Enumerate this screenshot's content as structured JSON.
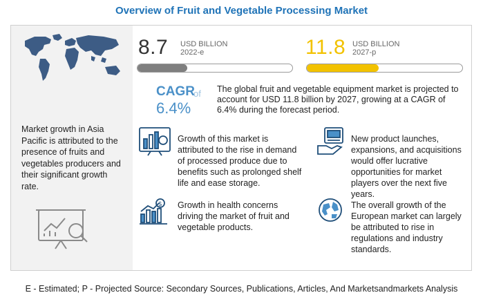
{
  "title": "Overview of Fruit and Vegetable Processing Market",
  "left_panel": {
    "text": "Market growth in Asia Pacific is attributed to the presence of fruits and vegetables producers and their significant growth rate.",
    "map_icon": "world-map-icon",
    "report_icon": "analytics-report-icon"
  },
  "stats": {
    "v2022": {
      "value": "8.7",
      "unit": "USD BILLION",
      "year": "2022-e",
      "bar_fill_fraction": 0.32,
      "color": "#7f7f7f"
    },
    "v2027": {
      "value": "11.8",
      "unit": "USD BILLION",
      "year": "2027-p",
      "bar_fill_fraction": 0.46,
      "color": "#f2c200"
    }
  },
  "cagr": {
    "label": "CAGR",
    "of": "of",
    "value": "6.4%",
    "description": "The global fruit and vegetable equipment market is projected to account for USD 11.8 billion by 2027, growing at a CAGR of 6.4% during the forecast period."
  },
  "points": [
    {
      "icon": "growth-chart-icon",
      "text": "Growth of this market is attributed to the rise in demand of processed produce due to benefits such as prolonged shelf life and ease storage."
    },
    {
      "icon": "product-launch-icon",
      "text": "New product launches, expansions, and acquisitions would offer lucrative opportunities for market players over the next five years."
    },
    {
      "icon": "dollar-growth-icon",
      "text": "Growth in health concerns driving the market of fruit and vegetable products."
    },
    {
      "icon": "globe-icon",
      "text": "The overall growth of the European market can largely be attributed to rise in regulations and industry standards."
    }
  ],
  "footer": "E - Estimated; P - Projected Source: Secondary Sources, Publications, Articles, And Marketsandmarkets Analysis",
  "colors": {
    "title": "#1f73b7",
    "accent_yellow": "#f2c200",
    "accent_blue": "#4a90c8",
    "panel_bg": "#f2f2f2"
  }
}
